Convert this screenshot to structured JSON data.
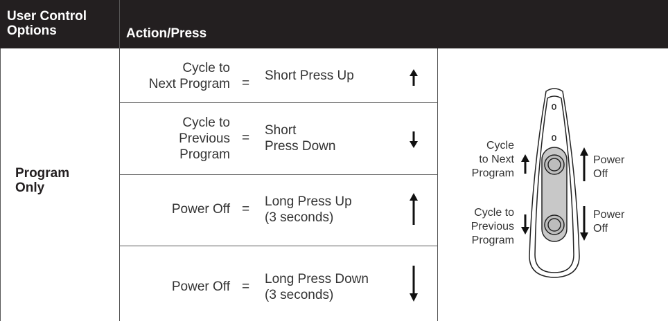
{
  "header": {
    "col1": "User Control\nOptions",
    "col2": "Action/Press"
  },
  "group": "Program\nOnly",
  "rows": [
    {
      "action": "Cycle to\nNext Program",
      "equals": "=",
      "press": "Short Press Up"
    },
    {
      "action": "Cycle to\nPrevious\nProgram",
      "equals": "=",
      "press": "Short\nPress Down"
    },
    {
      "action": "Power Off",
      "equals": "=",
      "press": "Long Press Up\n(3 seconds)"
    },
    {
      "action": "Power Off",
      "equals": "=",
      "press": "Long Press Down\n(3 seconds)"
    }
  ],
  "diagram": {
    "labels": [
      "Cycle\nto Next\nProgram",
      "Power\nOff",
      "Cycle to\nPrevious\nProgram",
      "Power\nOff"
    ]
  }
}
